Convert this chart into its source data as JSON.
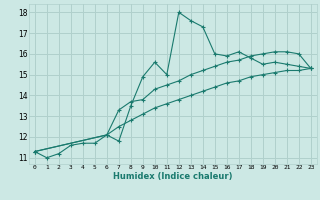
{
  "xlabel": "Humidex (Indice chaleur)",
  "ylabel": "",
  "bg_color": "#cce8e4",
  "grid_color": "#b0d0cc",
  "line_color": "#1a7a6e",
  "xlim": [
    -0.5,
    23.5
  ],
  "ylim": [
    10.7,
    18.4
  ],
  "xticks": [
    0,
    1,
    2,
    3,
    4,
    5,
    6,
    7,
    8,
    9,
    10,
    11,
    12,
    13,
    14,
    15,
    16,
    17,
    18,
    19,
    20,
    21,
    22,
    23
  ],
  "yticks": [
    11,
    12,
    13,
    14,
    15,
    16,
    17,
    18
  ],
  "series1_x": [
    0,
    1,
    2,
    3,
    4,
    5,
    6,
    7,
    8,
    9,
    10,
    11,
    12,
    13,
    14,
    15,
    16,
    17,
    18,
    19,
    20,
    21,
    22,
    23
  ],
  "series1_y": [
    11.3,
    11.0,
    11.2,
    11.6,
    11.7,
    11.7,
    12.1,
    11.8,
    13.5,
    14.9,
    15.6,
    15.0,
    18.0,
    17.6,
    17.3,
    16.0,
    15.9,
    16.1,
    15.8,
    15.5,
    15.6,
    15.5,
    15.4,
    15.3
  ],
  "series2_x": [
    0,
    6,
    7,
    8,
    9,
    10,
    11,
    12,
    13,
    14,
    15,
    16,
    17,
    18,
    19,
    20,
    21,
    22,
    23
  ],
  "series2_y": [
    11.3,
    12.1,
    13.3,
    13.7,
    13.8,
    14.3,
    14.5,
    14.7,
    15.0,
    15.2,
    15.4,
    15.6,
    15.7,
    15.9,
    16.0,
    16.1,
    16.1,
    16.0,
    15.3
  ],
  "series3_x": [
    0,
    6,
    7,
    8,
    9,
    10,
    11,
    12,
    13,
    14,
    15,
    16,
    17,
    18,
    19,
    20,
    21,
    22,
    23
  ],
  "series3_y": [
    11.3,
    12.1,
    12.5,
    12.8,
    13.1,
    13.4,
    13.6,
    13.8,
    14.0,
    14.2,
    14.4,
    14.6,
    14.7,
    14.9,
    15.0,
    15.1,
    15.2,
    15.2,
    15.3
  ]
}
